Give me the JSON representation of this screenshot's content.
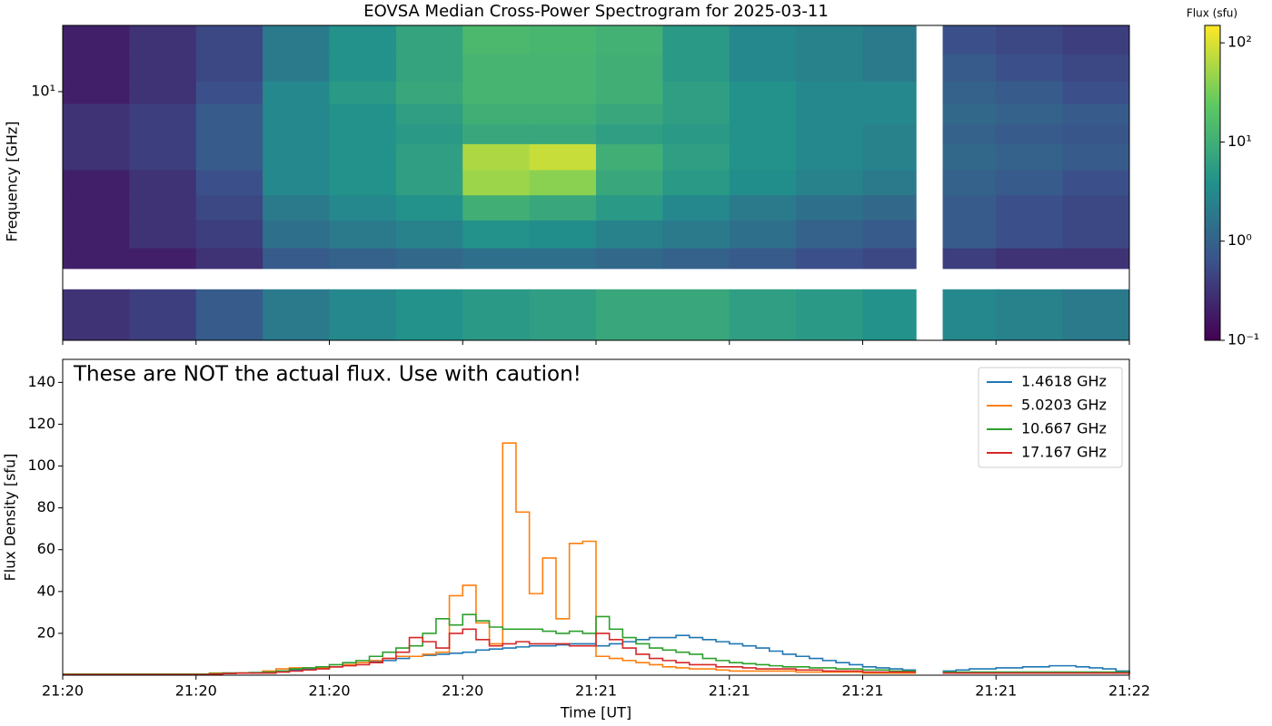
{
  "chart_data": [
    {
      "type": "heatmap",
      "title": "EOVSA Median Cross-Power Spectrogram for 2025-03-11",
      "ylabel": "Frequency [GHz]",
      "yscale": "log",
      "ylim": [
        1.1,
        18
      ],
      "yticks": [
        {
          "value": 10,
          "label": "10¹"
        }
      ],
      "xlim": [
        0,
        8
      ],
      "xticks": [
        0,
        1,
        2,
        3,
        4,
        5,
        6,
        7,
        8
      ],
      "colorbar_label": "Flux (sfu)",
      "cscale": "log",
      "clim": [
        0.1,
        150
      ],
      "colormap": "viridis",
      "cticks": [
        {
          "value": 0.1,
          "label": "10⁻¹"
        },
        {
          "value": 1,
          "label": "10⁰"
        },
        {
          "value": 10,
          "label": "10¹"
        },
        {
          "value": 100,
          "label": "10²"
        }
      ],
      "time_edges": [
        0,
        0.5,
        1,
        1.5,
        2,
        2.5,
        3,
        3.5,
        4,
        4.5,
        5,
        5.5,
        6,
        6.4,
        6.6,
        7,
        7.5,
        8
      ],
      "frequency_edges": [
        1.1,
        1.73,
        2.08,
        2.5,
        3.2,
        4,
        5,
        6.3,
        7.5,
        9,
        11,
        14,
        18
      ],
      "values": [
        [
          0.3,
          0.4,
          0.8,
          2,
          3,
          4,
          5,
          6,
          8,
          8,
          6,
          5,
          4,
          null,
          3,
          2.5,
          2
        ],
        [
          null,
          null,
          null,
          null,
          null,
          null,
          null,
          null,
          null,
          null,
          null,
          null,
          null,
          null,
          null,
          null,
          null
        ],
        [
          0.2,
          0.2,
          0.3,
          0.8,
          1,
          1.2,
          1.5,
          1.5,
          1.2,
          1,
          0.8,
          0.6,
          0.5,
          null,
          0.4,
          0.3,
          0.3
        ],
        [
          0.2,
          0.3,
          0.4,
          1.5,
          2,
          2.5,
          4,
          3.5,
          2.5,
          2,
          1.5,
          1,
          0.8,
          null,
          0.8,
          0.6,
          0.5
        ],
        [
          0.2,
          0.3,
          0.5,
          2,
          3,
          4,
          10,
          8,
          5,
          3,
          2,
          1.5,
          1.2,
          null,
          0.8,
          0.6,
          0.5
        ],
        [
          0.2,
          0.3,
          0.6,
          3,
          4,
          6,
          50,
          40,
          8,
          5,
          3.5,
          2.5,
          2,
          null,
          1,
          0.8,
          0.6
        ],
        [
          0.3,
          0.4,
          0.8,
          3,
          4,
          6,
          60,
          80,
          10,
          6,
          4,
          3,
          2.5,
          null,
          1.2,
          1,
          0.8
        ],
        [
          0.3,
          0.4,
          0.8,
          3,
          4,
          5,
          8,
          8,
          6,
          5,
          4,
          3,
          2.5,
          null,
          1,
          0.8,
          0.7
        ],
        [
          0.3,
          0.4,
          0.8,
          3,
          4,
          6,
          10,
          10,
          8,
          6,
          4,
          3,
          3,
          null,
          1.2,
          1,
          0.8
        ],
        [
          0.2,
          0.3,
          0.6,
          3,
          5,
          8,
          12,
          12,
          10,
          6,
          4,
          3,
          3,
          null,
          1,
          0.8,
          0.6
        ],
        [
          0.2,
          0.3,
          0.5,
          2,
          4,
          7,
          12,
          12,
          10,
          5,
          3,
          2.5,
          2,
          null,
          0.8,
          0.6,
          0.5
        ],
        [
          0.2,
          0.3,
          0.5,
          2,
          4,
          7,
          14,
          13,
          11,
          5,
          3,
          2.5,
          2,
          null,
          0.6,
          0.5,
          0.4
        ]
      ]
    },
    {
      "type": "line",
      "step": true,
      "xlabel": "Time [UT]",
      "ylabel": "Flux Density [sfu]",
      "annotation": "These are NOT the actual flux. Use with caution!",
      "legend": "upper right",
      "xlim": [
        0,
        8
      ],
      "xticks": [
        {
          "value": 0,
          "label": "21:20"
        },
        {
          "value": 1,
          "label": "21:20"
        },
        {
          "value": 2,
          "label": "21:20"
        },
        {
          "value": 3,
          "label": "21:20"
        },
        {
          "value": 4,
          "label": "21:21"
        },
        {
          "value": 5,
          "label": "21:21"
        },
        {
          "value": 6,
          "label": "21:21"
        },
        {
          "value": 7,
          "label": "21:21"
        },
        {
          "value": 8,
          "label": "21:22"
        }
      ],
      "ylim": [
        0,
        151
      ],
      "yticks": [
        20,
        40,
        60,
        80,
        100,
        120,
        140
      ],
      "x": [
        0,
        0.1,
        0.2,
        0.3,
        0.4,
        0.5,
        0.6,
        0.7,
        0.8,
        0.9,
        1,
        1.1,
        1.2,
        1.3,
        1.4,
        1.5,
        1.6,
        1.7,
        1.8,
        1.9,
        2,
        2.1,
        2.2,
        2.3,
        2.4,
        2.5,
        2.6,
        2.7,
        2.8,
        2.9,
        3,
        3.1,
        3.2,
        3.3,
        3.4,
        3.5,
        3.6,
        3.7,
        3.8,
        3.9,
        4,
        4.1,
        4.2,
        4.3,
        4.4,
        4.5,
        4.6,
        4.7,
        4.8,
        4.9,
        5,
        5.1,
        5.2,
        5.3,
        5.4,
        5.5,
        5.6,
        5.7,
        5.8,
        5.9,
        6,
        6.1,
        6.2,
        6.3,
        6.4,
        6.5,
        6.6,
        6.7,
        6.8,
        6.9,
        7,
        7.1,
        7.2,
        7.3,
        7.4,
        7.5,
        7.6,
        7.7,
        7.8,
        7.9,
        8
      ],
      "series": [
        {
          "name": "1.4618 GHz",
          "color": "#1f77b4",
          "values": [
            0.5,
            0.5,
            0.5,
            0.5,
            0.5,
            0.5,
            0.5,
            0.5,
            0.5,
            0.5,
            0.5,
            0.8,
            1,
            1,
            1.2,
            1.5,
            2,
            2.5,
            3,
            3.5,
            4,
            5,
            6,
            6.5,
            7,
            8,
            9,
            9.5,
            10,
            10.5,
            11,
            12,
            12.5,
            13,
            13.5,
            14,
            14,
            14.5,
            15,
            15,
            14,
            15,
            16,
            17,
            18,
            18,
            19,
            18,
            17,
            16,
            15,
            14,
            13,
            11.5,
            10,
            9,
            8,
            7,
            6,
            5,
            4,
            3.5,
            3,
            2.5,
            null,
            null,
            2,
            2.5,
            3,
            3,
            3.5,
            3.5,
            4,
            4,
            4.5,
            4.5,
            4,
            3.5,
            3,
            2,
            1.5
          ]
        },
        {
          "name": "5.0203 GHz",
          "color": "#ff7f0e",
          "values": [
            0.5,
            0.5,
            0.5,
            0.5,
            0.5,
            0.5,
            0.5,
            0.5,
            0.5,
            0.5,
            0.5,
            1,
            1,
            1,
            1,
            2,
            3,
            3.5,
            3.5,
            3.5,
            4,
            5,
            6,
            7,
            8,
            9,
            9,
            10,
            11,
            38,
            43,
            25,
            15,
            111,
            78,
            39,
            56,
            27,
            63,
            64,
            9,
            8,
            7,
            6,
            5,
            4,
            3.5,
            3,
            3,
            2.5,
            2,
            2,
            2,
            2,
            2,
            1.5,
            1.5,
            1.5,
            1.5,
            1.5,
            1,
            1,
            1,
            1,
            null,
            null,
            1,
            1,
            1,
            1,
            1,
            1,
            1,
            1,
            1,
            1,
            1,
            1,
            1,
            1,
            0.5
          ]
        },
        {
          "name": "10.667 GHz",
          "color": "#2ca02c",
          "values": [
            0.5,
            0.5,
            0.5,
            0.5,
            0.5,
            0.5,
            0.5,
            0.5,
            0.5,
            0.5,
            0.5,
            0.8,
            1,
            1,
            1.2,
            1.5,
            2,
            3,
            3.5,
            4,
            5,
            6,
            7,
            9,
            11,
            13,
            14,
            20,
            27,
            24,
            29,
            26,
            23,
            22,
            22,
            22,
            21,
            20,
            21,
            20,
            28,
            22,
            18,
            15,
            13,
            12,
            11,
            10,
            8,
            7,
            6,
            5.5,
            5,
            4.5,
            4,
            4,
            3.5,
            3.5,
            3,
            3,
            2.5,
            2.5,
            2,
            2,
            null,
            null,
            1.5,
            1.5,
            1.5,
            1.5,
            1.5,
            1.5,
            1.5,
            1.5,
            1.5,
            1.5,
            1.5,
            1.5,
            1.5,
            1.5,
            1
          ]
        },
        {
          "name": "17.167 GHz",
          "color": "#d62728",
          "values": [
            0.3,
            0.3,
            0.3,
            0.3,
            0.3,
            0.3,
            0.3,
            0.3,
            0.3,
            0.3,
            0.3,
            0.5,
            0.8,
            1,
            1,
            1,
            1.5,
            2,
            2.5,
            3,
            4,
            4.5,
            5,
            6,
            8,
            11,
            18,
            16,
            13,
            20,
            22,
            17,
            14,
            15,
            16,
            15,
            15,
            15,
            14,
            14,
            20,
            17,
            13,
            10,
            8,
            7,
            6,
            5,
            5,
            4,
            4,
            3.5,
            3,
            3,
            3,
            2.5,
            2.5,
            2,
            2,
            2,
            1.5,
            1.5,
            1.5,
            1.5,
            null,
            null,
            1,
            1,
            1,
            1,
            1,
            1,
            1,
            1,
            1,
            1,
            1,
            1,
            1,
            1,
            0.5
          ]
        }
      ]
    }
  ]
}
